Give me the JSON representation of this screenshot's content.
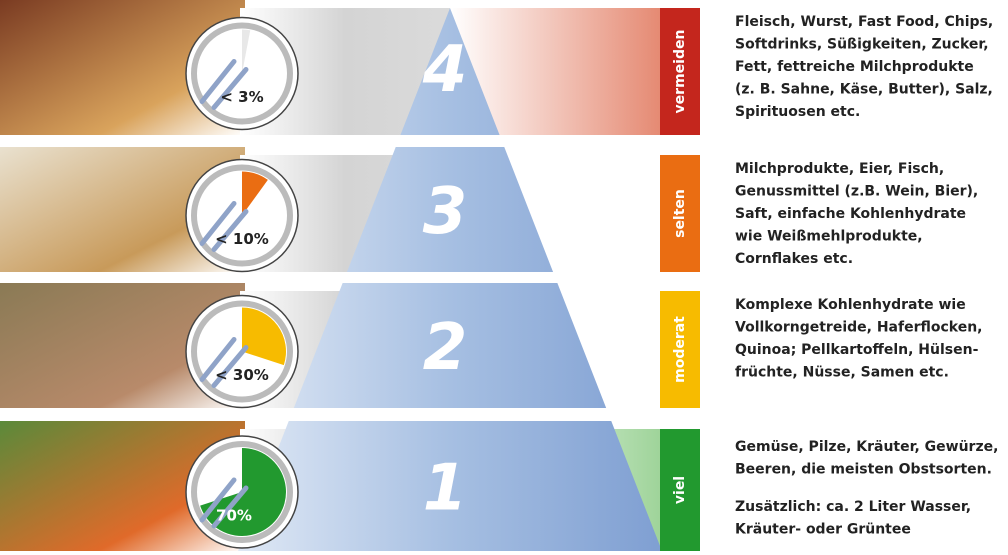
{
  "rows": [
    {
      "level": "4",
      "share": {
        "value": 3,
        "label": "< 3%"
      },
      "frequency": "vermeiden",
      "color": "#c4261d",
      "tint": "#e58a73",
      "text": [
        "Fleisch, Wurst, Fast Food, Chips,",
        "Softdrinks, Süßigkeiten, Zucker,",
        "Fett, fettreiche Milchprodukte",
        "(z. B. Sahne, Käse, Butter), Salz,",
        "Spirituosen etc."
      ]
    },
    {
      "level": "3",
      "share": {
        "value": 10,
        "label": "< 10%"
      },
      "frequency": "selten",
      "color": "#ea6d12",
      "tint": "#ffffff",
      "text": [
        "Milchprodukte, Eier, Fisch,",
        "Genussmittel (z.B. Wein, Bier),",
        "Saft, einfache Kohlenhydrate",
        "wie Weißmehlprodukte,",
        "Cornflakes etc."
      ]
    },
    {
      "level": "2",
      "share": {
        "value": 30,
        "label": "< 30%"
      },
      "frequency": "moderat",
      "color": "#f7bb00",
      "tint": "#ffffff",
      "text": [
        "Komplexe Kohlenhydrate wie",
        "Vollkorngetreide, Haferflocken,",
        "Quinoa; Pellkartoffeln, Hülsen-",
        "früchte, Nüsse, Samen etc."
      ]
    },
    {
      "level": "1",
      "share": {
        "value": 70,
        "label": "70%"
      },
      "frequency": "viel",
      "color": "#22992f",
      "tint": "#9fd49a",
      "text": [
        "Gemüse, Pilze, Kräuter, Gewürze,",
        "Beeren, die meisten Obstsorten."
      ],
      "note": [
        "Zusätzlich: ca. 2 Liter Wasser,",
        "Kräuter- oder Grüntee"
      ]
    }
  ]
}
